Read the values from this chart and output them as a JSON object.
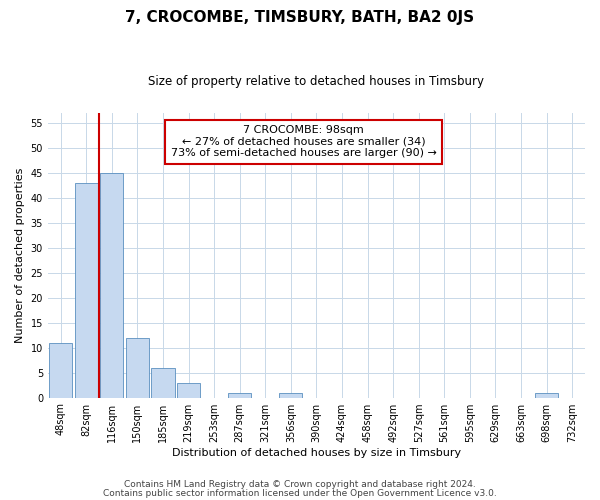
{
  "title": "7, CROCOMBE, TIMSBURY, BATH, BA2 0JS",
  "subtitle": "Size of property relative to detached houses in Timsbury",
  "xlabel": "Distribution of detached houses by size in Timsbury",
  "ylabel": "Number of detached properties",
  "bar_labels": [
    "48sqm",
    "82sqm",
    "116sqm",
    "150sqm",
    "185sqm",
    "219sqm",
    "253sqm",
    "287sqm",
    "321sqm",
    "356sqm",
    "390sqm",
    "424sqm",
    "458sqm",
    "492sqm",
    "527sqm",
    "561sqm",
    "595sqm",
    "629sqm",
    "663sqm",
    "698sqm",
    "732sqm"
  ],
  "bar_values": [
    11,
    43,
    45,
    12,
    6,
    3,
    0,
    1,
    0,
    1,
    0,
    0,
    0,
    0,
    0,
    0,
    0,
    0,
    0,
    1,
    0
  ],
  "bar_color": "#c6d9f0",
  "bar_edge_color": "#5a8fc0",
  "vline_color": "#cc0000",
  "vline_x": 1.5,
  "annotation_title": "7 CROCOMBE: 98sqm",
  "annotation_line1": "← 27% of detached houses are smaller (34)",
  "annotation_line2": "73% of semi-detached houses are larger (90) →",
  "annotation_box_color": "#ffffff",
  "annotation_box_edge": "#cc0000",
  "ylim": [
    0,
    57
  ],
  "yticks": [
    0,
    5,
    10,
    15,
    20,
    25,
    30,
    35,
    40,
    45,
    50,
    55
  ],
  "footer1": "Contains HM Land Registry data © Crown copyright and database right 2024.",
  "footer2": "Contains public sector information licensed under the Open Government Licence v3.0.",
  "bg_color": "#ffffff",
  "grid_color": "#c8d8e8",
  "title_fontsize": 11,
  "subtitle_fontsize": 8.5,
  "axis_label_fontsize": 8,
  "tick_fontsize": 7,
  "annotation_fontsize": 8,
  "footer_fontsize": 6.5
}
